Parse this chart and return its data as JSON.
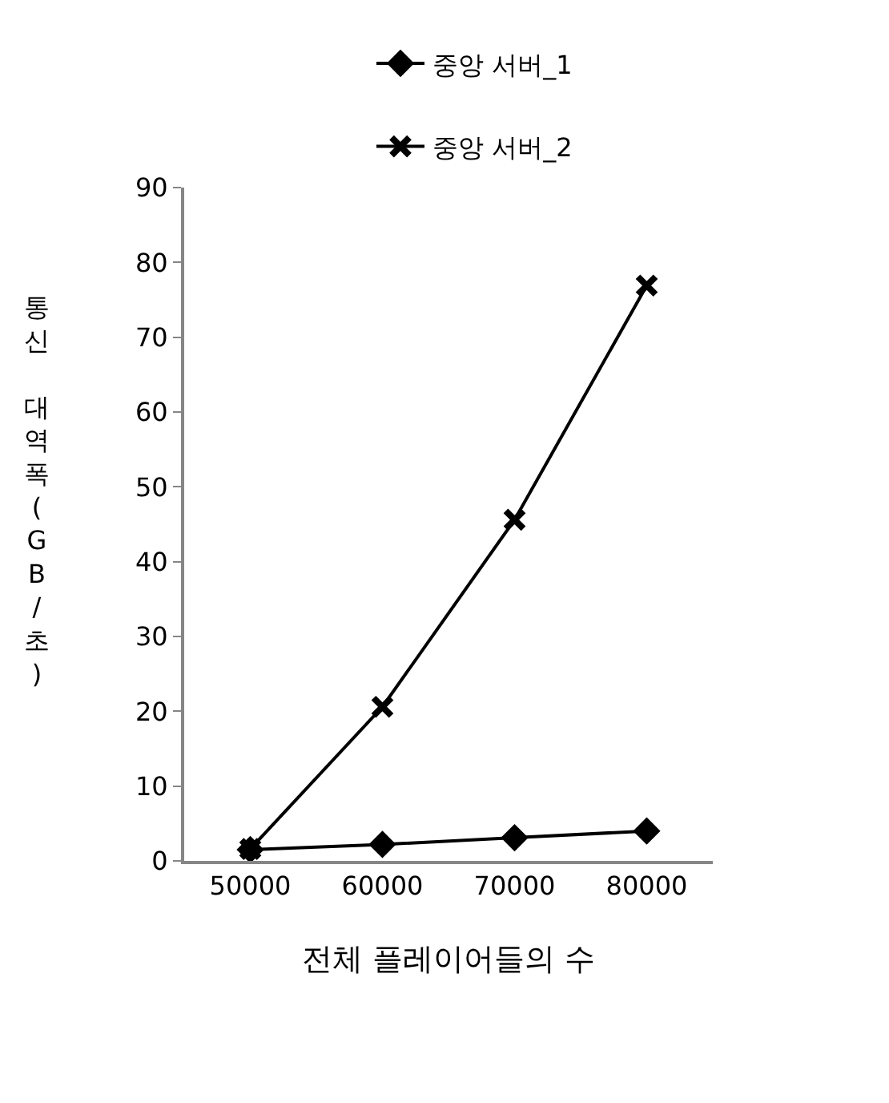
{
  "chart_data": {
    "type": "line",
    "xlabel": "전체 플레이어들의 수",
    "ylabel": "통신 대역폭(GB/초)",
    "categories": [
      "50000",
      "60000",
      "70000",
      "80000"
    ],
    "series": [
      {
        "name": "중앙 서버_1",
        "color": "#000000",
        "marker": "diamond",
        "values": [
          1.5,
          2.2,
          3.1,
          4.0
        ]
      },
      {
        "name": "중앙 서버_2",
        "color": "#000000",
        "marker": "cross",
        "values": [
          1.6,
          20.6,
          45.6,
          76.9
        ]
      }
    ],
    "ylim": [
      0,
      90
    ],
    "yticks": [
      0,
      10,
      20,
      30,
      40,
      50,
      60,
      70,
      80,
      90
    ],
    "legend": "top",
    "line_style": "solid"
  }
}
